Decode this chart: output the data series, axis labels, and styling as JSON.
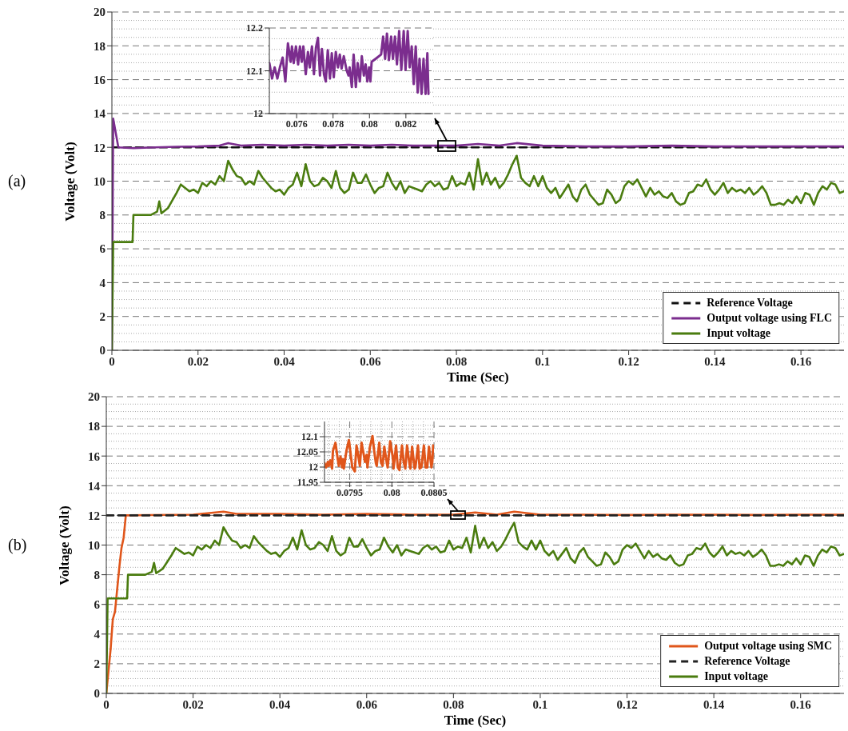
{
  "chart_data": [
    {
      "type": "line",
      "xlabel": "Time (Sec)",
      "ylabel": "Voltage (Volt)",
      "annotations": [
        "(a)"
      ],
      "xlim": [
        0,
        0.17
      ],
      "xticks": [
        0,
        0.02,
        0.04,
        0.06,
        0.08,
        0.1,
        0.12,
        0.14,
        0.16
      ],
      "ylim": [
        0,
        20
      ],
      "yticks": [
        0,
        2,
        4,
        6,
        8,
        10,
        12,
        14,
        16,
        18,
        20
      ],
      "grid": "y",
      "legend": "bottom right",
      "series": [
        {
          "name": "Reference Voltage",
          "color": "#111111",
          "line_style": "dashed",
          "x": [
            0,
            0.17
          ],
          "values": [
            12,
            12
          ]
        },
        {
          "name": "Output voltage using FLC",
          "color": "#7b2d8e",
          "x": [
            0,
            0.0003,
            0.0015,
            0.005,
            0.01,
            0.015,
            0.02,
            0.025,
            0.027,
            0.03,
            0.035,
            0.04,
            0.045,
            0.05,
            0.055,
            0.06,
            0.065,
            0.07,
            0.075,
            0.08,
            0.085,
            0.09,
            0.094,
            0.1,
            0.11,
            0.12,
            0.13,
            0.14,
            0.15,
            0.16,
            0.17
          ],
          "values": [
            0,
            13.7,
            12.0,
            11.95,
            12.0,
            12.03,
            12.05,
            12.1,
            12.25,
            12.1,
            12.15,
            12.1,
            12.15,
            12.1,
            12.15,
            12.1,
            12.15,
            12.1,
            12.1,
            12.1,
            12.2,
            12.1,
            12.25,
            12.1,
            12.05,
            12.05,
            12.1,
            12.05,
            12.05,
            12.05,
            12.05
          ]
        },
        {
          "name": "Input voltage",
          "color": "#4a7c0f",
          "x": [
            0,
            0.0003,
            0.0048,
            0.005,
            0.009,
            0.0105,
            0.011,
            0.0115,
            0.013,
            0.015,
            0.016,
            0.017,
            0.018,
            0.019,
            0.02,
            0.021,
            0.022,
            0.023,
            0.024,
            0.025,
            0.026,
            0.027,
            0.028,
            0.029,
            0.03,
            0.031,
            0.032,
            0.033,
            0.034,
            0.035,
            0.036,
            0.037,
            0.038,
            0.039,
            0.04,
            0.041,
            0.042,
            0.043,
            0.044,
            0.045,
            0.046,
            0.047,
            0.048,
            0.049,
            0.05,
            0.051,
            0.052,
            0.053,
            0.054,
            0.055,
            0.056,
            0.057,
            0.058,
            0.059,
            0.06,
            0.061,
            0.062,
            0.063,
            0.064,
            0.065,
            0.066,
            0.067,
            0.068,
            0.069,
            0.07,
            0.071,
            0.072,
            0.073,
            0.074,
            0.075,
            0.076,
            0.077,
            0.078,
            0.079,
            0.08,
            0.081,
            0.082,
            0.083,
            0.084,
            0.085,
            0.086,
            0.087,
            0.088,
            0.089,
            0.09,
            0.091,
            0.092,
            0.093,
            0.094,
            0.095,
            0.096,
            0.097,
            0.098,
            0.099,
            0.1,
            0.101,
            0.102,
            0.103,
            0.104,
            0.105,
            0.106,
            0.107,
            0.108,
            0.109,
            0.11,
            0.111,
            0.112,
            0.113,
            0.114,
            0.115,
            0.116,
            0.117,
            0.118,
            0.119,
            0.12,
            0.121,
            0.122,
            0.123,
            0.124,
            0.125,
            0.126,
            0.127,
            0.128,
            0.129,
            0.13,
            0.131,
            0.132,
            0.133,
            0.134,
            0.135,
            0.136,
            0.137,
            0.138,
            0.139,
            0.14,
            0.141,
            0.142,
            0.143,
            0.144,
            0.145,
            0.146,
            0.147,
            0.148,
            0.149,
            0.15,
            0.151,
            0.152,
            0.153,
            0.154,
            0.155,
            0.156,
            0.157,
            0.158,
            0.159,
            0.16,
            0.161,
            0.162,
            0.163,
            0.164,
            0.165,
            0.166,
            0.167,
            0.168,
            0.169,
            0.17
          ],
          "values": [
            0,
            6.4,
            6.4,
            8.0,
            8.0,
            8.2,
            8.8,
            8.1,
            8.4,
            9.3,
            9.8,
            9.6,
            9.4,
            9.5,
            9.3,
            9.9,
            9.7,
            10.0,
            9.8,
            10.3,
            10.0,
            11.2,
            10.7,
            10.3,
            10.2,
            9.8,
            10.0,
            9.8,
            10.6,
            10.2,
            9.9,
            9.6,
            9.4,
            9.5,
            9.2,
            9.6,
            9.8,
            10.5,
            9.7,
            11.0,
            10.0,
            9.7,
            9.8,
            10.2,
            10.0,
            9.6,
            10.6,
            9.6,
            9.3,
            9.5,
            10.5,
            9.9,
            9.9,
            10.4,
            9.8,
            9.3,
            9.6,
            9.7,
            10.5,
            9.9,
            9.5,
            10.0,
            9.3,
            9.7,
            9.6,
            9.5,
            9.4,
            9.8,
            10.0,
            9.7,
            9.9,
            9.5,
            9.6,
            10.3,
            9.7,
            9.9,
            9.8,
            10.5,
            9.5,
            11.3,
            9.8,
            10.5,
            9.8,
            10.2,
            9.6,
            9.9,
            10.4,
            11.0,
            11.5,
            10.2,
            9.9,
            9.7,
            10.3,
            9.7,
            10.3,
            9.6,
            9.3,
            9.6,
            9.0,
            9.4,
            9.8,
            9.1,
            8.8,
            9.5,
            9.8,
            9.2,
            8.9,
            8.6,
            8.7,
            9.5,
            9.2,
            8.7,
            8.9,
            9.7,
            10.0,
            9.8,
            10.1,
            9.6,
            9.1,
            9.6,
            9.2,
            9.4,
            9.1,
            9.0,
            9.3,
            8.8,
            8.6,
            8.7,
            9.3,
            9.4,
            9.8,
            9.7,
            10.1,
            9.5,
            9.2,
            9.5,
            9.9,
            9.3,
            9.6,
            9.4,
            9.5,
            9.3,
            9.6,
            9.2,
            9.4,
            9.7,
            9.3,
            8.6,
            8.6,
            8.7,
            8.6,
            8.9,
            8.7,
            9.1,
            8.7,
            9.3,
            9.2,
            8.6,
            9.3,
            9.7,
            9.5,
            9.9,
            9.8,
            9.3,
            9.4
          ]
        }
      ]
    },
    {
      "type": "line",
      "xlim": [
        0.0745,
        0.0835
      ],
      "xticks": [
        0.076,
        0.078,
        0.08,
        0.082
      ],
      "ylim": [
        12,
        12.2
      ],
      "yticks": [
        12,
        12.1,
        12.2
      ],
      "grid": "y",
      "series": [
        {
          "color": "#7b2d8e",
          "x": [
            0.0745,
            0.07465,
            0.07479,
            0.07494,
            0.07508,
            0.07523,
            0.07538,
            0.07552,
            0.07567,
            0.07574,
            0.07584,
            0.07596,
            0.07608,
            0.07618,
            0.07628,
            0.07637,
            0.0765,
            0.07662,
            0.07672,
            0.07684,
            0.07695,
            0.07706,
            0.07717,
            0.07728,
            0.07739,
            0.0775,
            0.0776,
            0.07771,
            0.07783,
            0.07793,
            0.07804,
            0.07815,
            0.07827,
            0.07837,
            0.07847,
            0.07859,
            0.07874,
            0.07885,
            0.07891,
            0.07903,
            0.07913,
            0.07925,
            0.07935,
            0.07947,
            0.07958,
            0.07969,
            0.07979,
            0.07988,
            0.07998,
            0.08005,
            0.08012,
            0.08034,
            0.08064,
            0.08075,
            0.08086,
            0.08096,
            0.08107,
            0.08119,
            0.08129,
            0.0814,
            0.08151,
            0.08163,
            0.08175,
            0.08188,
            0.08198,
            0.0821,
            0.08221,
            0.08232,
            0.08243,
            0.08254,
            0.08265,
            0.08275,
            0.08286,
            0.08297,
            0.08308,
            0.08318,
            0.08324
          ],
          "values": [
            12.118,
            12.082,
            12.108,
            12.082,
            12.108,
            12.131,
            12.075,
            12.164,
            12.121,
            12.157,
            12.118,
            12.157,
            12.115,
            12.157,
            12.121,
            12.157,
            12.092,
            12.144,
            12.108,
            12.157,
            12.092,
            12.154,
            12.177,
            12.089,
            12.151,
            12.092,
            12.075,
            12.148,
            12.082,
            12.141,
            12.085,
            12.144,
            12.108,
            12.138,
            12.105,
            12.134,
            12.102,
            12.089,
            12.108,
            12.062,
            12.138,
            12.062,
            12.118,
            12.075,
            12.134,
            12.089,
            12.115,
            12.075,
            12.108,
            12.075,
            12.121,
            12.128,
            12.138,
            12.18,
            12.128,
            12.187,
            12.125,
            12.18,
            12.128,
            12.18,
            12.115,
            12.193,
            12.102,
            12.193,
            12.102,
            12.193,
            12.108,
            12.157,
            12.069,
            12.157,
            12.049,
            12.128,
            12.046,
            12.128,
            12.046,
            12.141,
            12.046
          ]
        }
      ]
    },
    {
      "type": "line",
      "xlabel": "Time (Sec)",
      "ylabel": "Voltage (Volt)",
      "annotations": [
        "(b)"
      ],
      "xlim": [
        0,
        0.17
      ],
      "xticks": [
        0,
        0.02,
        0.04,
        0.06,
        0.08,
        0.1,
        0.12,
        0.14,
        0.16
      ],
      "ylim": [
        0,
        20
      ],
      "yticks": [
        0,
        2,
        4,
        6,
        8,
        10,
        12,
        14,
        16,
        18,
        20
      ],
      "grid": "y",
      "legend": "bottom right",
      "series": [
        {
          "name": "Output voltage using SMC",
          "color": "#e0561b",
          "x": [
            0,
            0.001,
            0.0015,
            0.002,
            0.0025,
            0.003,
            0.0035,
            0.004,
            0.0045,
            0.005,
            0.01,
            0.02,
            0.027,
            0.03,
            0.04,
            0.05,
            0.06,
            0.07,
            0.08,
            0.085,
            0.09,
            0.094,
            0.1,
            0.11,
            0.12,
            0.13,
            0.14,
            0.15,
            0.16,
            0.17
          ],
          "values": [
            0,
            3,
            5,
            5.5,
            7,
            8.5,
            9.8,
            10.5,
            12,
            12,
            12.02,
            12.05,
            12.25,
            12.1,
            12.1,
            12.05,
            12.1,
            12.05,
            12.05,
            12.2,
            12.05,
            12.25,
            12.05,
            12.05,
            12.03,
            12.05,
            12.05,
            12.03,
            12.05,
            12.05
          ]
        },
        {
          "name": "Reference Voltage",
          "color": "#222222",
          "line_style": "dashed",
          "x": [
            0,
            0.17
          ],
          "values": [
            12,
            12
          ]
        },
        {
          "name": "Input voltage",
          "color": "#4a7c0f",
          "x": [
            0,
            0.0003,
            0.0048,
            0.005,
            0.009,
            0.0105,
            0.011,
            0.0115,
            0.013,
            0.015,
            0.016,
            0.017,
            0.018,
            0.019,
            0.02,
            0.021,
            0.022,
            0.023,
            0.024,
            0.025,
            0.026,
            0.027,
            0.028,
            0.029,
            0.03,
            0.031,
            0.032,
            0.033,
            0.034,
            0.035,
            0.036,
            0.037,
            0.038,
            0.039,
            0.04,
            0.041,
            0.042,
            0.043,
            0.044,
            0.045,
            0.046,
            0.047,
            0.048,
            0.049,
            0.05,
            0.051,
            0.052,
            0.053,
            0.054,
            0.055,
            0.056,
            0.057,
            0.058,
            0.059,
            0.06,
            0.061,
            0.062,
            0.063,
            0.064,
            0.065,
            0.066,
            0.067,
            0.068,
            0.069,
            0.07,
            0.071,
            0.072,
            0.073,
            0.074,
            0.075,
            0.076,
            0.077,
            0.078,
            0.079,
            0.08,
            0.081,
            0.082,
            0.083,
            0.084,
            0.085,
            0.086,
            0.087,
            0.088,
            0.089,
            0.09,
            0.091,
            0.092,
            0.093,
            0.094,
            0.095,
            0.096,
            0.097,
            0.098,
            0.099,
            0.1,
            0.101,
            0.102,
            0.103,
            0.104,
            0.105,
            0.106,
            0.107,
            0.108,
            0.109,
            0.11,
            0.111,
            0.112,
            0.113,
            0.114,
            0.115,
            0.116,
            0.117,
            0.118,
            0.119,
            0.12,
            0.121,
            0.122,
            0.123,
            0.124,
            0.125,
            0.126,
            0.127,
            0.128,
            0.129,
            0.13,
            0.131,
            0.132,
            0.133,
            0.134,
            0.135,
            0.136,
            0.137,
            0.138,
            0.139,
            0.14,
            0.141,
            0.142,
            0.143,
            0.144,
            0.145,
            0.146,
            0.147,
            0.148,
            0.149,
            0.15,
            0.151,
            0.152,
            0.153,
            0.154,
            0.155,
            0.156,
            0.157,
            0.158,
            0.159,
            0.16,
            0.161,
            0.162,
            0.163,
            0.164,
            0.165,
            0.166,
            0.167,
            0.168,
            0.169,
            0.17
          ],
          "values": [
            0,
            6.4,
            6.4,
            8.0,
            8.0,
            8.2,
            8.8,
            8.1,
            8.4,
            9.3,
            9.8,
            9.6,
            9.4,
            9.5,
            9.3,
            9.9,
            9.7,
            10.0,
            9.8,
            10.3,
            10.0,
            11.2,
            10.7,
            10.3,
            10.2,
            9.8,
            10.0,
            9.8,
            10.6,
            10.2,
            9.9,
            9.6,
            9.4,
            9.5,
            9.2,
            9.6,
            9.8,
            10.5,
            9.7,
            11.0,
            10.0,
            9.7,
            9.8,
            10.2,
            10.0,
            9.6,
            10.6,
            9.6,
            9.3,
            9.5,
            10.5,
            9.9,
            9.9,
            10.4,
            9.8,
            9.3,
            9.6,
            9.7,
            10.5,
            9.9,
            9.5,
            10.0,
            9.3,
            9.7,
            9.6,
            9.5,
            9.4,
            9.8,
            10.0,
            9.7,
            9.9,
            9.5,
            9.6,
            10.3,
            9.7,
            9.9,
            9.8,
            10.5,
            9.5,
            11.3,
            9.8,
            10.5,
            9.8,
            10.2,
            9.6,
            9.9,
            10.4,
            11.0,
            11.5,
            10.2,
            9.9,
            9.7,
            10.3,
            9.7,
            10.3,
            9.6,
            9.3,
            9.6,
            9.0,
            9.4,
            9.8,
            9.1,
            8.8,
            9.5,
            9.8,
            9.2,
            8.9,
            8.6,
            8.7,
            9.5,
            9.2,
            8.7,
            8.9,
            9.7,
            10.0,
            9.8,
            10.1,
            9.6,
            9.1,
            9.6,
            9.2,
            9.4,
            9.1,
            9.0,
            9.3,
            8.8,
            8.6,
            8.7,
            9.3,
            9.4,
            9.8,
            9.7,
            10.1,
            9.5,
            9.2,
            9.5,
            9.9,
            9.3,
            9.6,
            9.4,
            9.5,
            9.3,
            9.6,
            9.2,
            9.4,
            9.7,
            9.3,
            8.6,
            8.6,
            8.7,
            8.6,
            8.9,
            8.7,
            9.1,
            8.7,
            9.3,
            9.2,
            8.6,
            9.3,
            9.7,
            9.5,
            9.9,
            9.8,
            9.3,
            9.4
          ]
        }
      ]
    },
    {
      "type": "line",
      "xlim": [
        0.0792,
        0.0805
      ],
      "xticks": [
        0.0795,
        0.08,
        0.0805
      ],
      "ylim": [
        11.95,
        12.15
      ],
      "yticks": [
        11.95,
        12,
        12.05,
        12.1
      ],
      "grid": true,
      "series": [
        {
          "color": "#e0561b",
          "x": [
            0.0792,
            0.07922,
            0.07924,
            0.07925,
            0.07927,
            0.07929,
            0.0793,
            0.07933,
            0.07935,
            0.07937,
            0.07939,
            0.07941,
            0.07942,
            0.07943,
            0.07946,
            0.07949,
            0.07951,
            0.07953,
            0.07956,
            0.07958,
            0.0796,
            0.07962,
            0.07964,
            0.07967,
            0.07968,
            0.0797,
            0.07971,
            0.07974,
            0.07977,
            0.07979,
            0.07981,
            0.07982,
            0.07985,
            0.07987,
            0.07989,
            0.07991,
            0.07994,
            0.07995,
            0.07998,
            0.08001,
            0.08002,
            0.08005,
            0.08007,
            0.08009,
            0.08012,
            0.08014,
            0.08016,
            0.08018,
            0.08021,
            0.08022,
            0.08024,
            0.08027,
            0.08028,
            0.08031,
            0.08033,
            0.08035,
            0.08038,
            0.0804,
            0.08042,
            0.08044,
            0.08047,
            0.08048,
            0.08049
          ],
          "values": [
            12.013,
            11.999,
            12.017,
            12.004,
            12.022,
            11.995,
            12.053,
            12.08,
            12.04,
            12.004,
            12.035,
            11.999,
            12.026,
            11.995,
            12.053,
            12.089,
            12.044,
            11.999,
            11.986,
            12.071,
            12.04,
            12.004,
            12.08,
            12.035,
            12.017,
            12.04,
            11.999,
            12.067,
            12.102,
            12.053,
            12.013,
            12.004,
            12.08,
            12.017,
            12.004,
            12.067,
            12.013,
            11.999,
            12.085,
            12.035,
            11.995,
            12.071,
            11.999,
            11.99,
            12.071,
            12.017,
            11.995,
            12.071,
            12.008,
            11.995,
            12.067,
            11.995,
            11.999,
            12.071,
            11.995,
            11.999,
            12.071,
            11.999,
            11.999,
            12.067,
            11.999,
            12.017,
            12.071
          ]
        }
      ]
    }
  ]
}
